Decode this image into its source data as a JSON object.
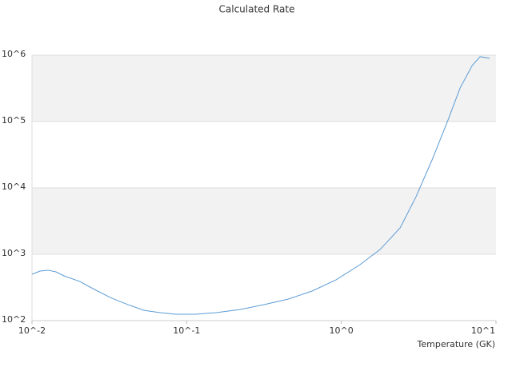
{
  "chart_data": {
    "type": "line",
    "title": "Calculated Rate",
    "x_label": "Temperature (GK)",
    "xlog": true,
    "ylog": true,
    "xlim": [
      0.01,
      10
    ],
    "ylim": [
      100,
      1000000
    ],
    "xticks": [
      {
        "value": 0.01,
        "label": "10^-2"
      },
      {
        "value": 0.1,
        "label": "10^-1"
      },
      {
        "value": 1,
        "label": "10^0"
      },
      {
        "value": 10,
        "label": "10^1"
      }
    ],
    "yticks": [
      {
        "value": 100,
        "label": "10^2"
      },
      {
        "value": 1000,
        "label": "10^3"
      },
      {
        "value": 10000,
        "label": "10^4"
      },
      {
        "value": 100000,
        "label": "10^5"
      },
      {
        "value": 1000000,
        "label": "10^6"
      }
    ],
    "band_color": "#f2f2f2",
    "x": [
      0.01,
      0.01127,
      0.01268,
      0.01429,
      0.0161,
      0.0204,
      0.0259,
      0.0329,
      0.0418,
      0.053,
      0.0673,
      0.0853,
      0.115,
      0.155,
      0.221,
      0.316,
      0.452,
      0.647,
      0.925,
      1.32,
      1.78,
      2.4,
      3.04,
      3.86,
      4.9,
      5.86,
      7.01,
      7.89,
      9.1
    ],
    "series": [
      {
        "color": "#5b9bd5",
        "values": [
          500,
          558,
          575,
          543,
          473,
          389,
          287,
          217,
          174,
          143,
          132,
          125,
          125,
          132,
          147,
          174,
          211,
          279,
          412,
          697,
          1180,
          2500,
          7360,
          26400,
          106000,
          320000,
          697000,
          947000,
          895000
        ]
      }
    ]
  }
}
